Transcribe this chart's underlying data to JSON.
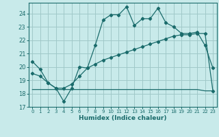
{
  "xlabel": "Humidex (Indice chaleur)",
  "bg_color": "#c8eaea",
  "grid_color": "#a0c8c8",
  "line_color": "#1a6b6b",
  "xlim": [
    -0.5,
    23.5
  ],
  "ylim": [
    17,
    24.8
  ],
  "yticks": [
    17,
    18,
    19,
    20,
    21,
    22,
    23,
    24
  ],
  "xticks": [
    0,
    1,
    2,
    3,
    4,
    5,
    6,
    7,
    8,
    9,
    10,
    11,
    12,
    13,
    14,
    15,
    16,
    17,
    18,
    19,
    20,
    21,
    22,
    23
  ],
  "line1_x": [
    0,
    1,
    2,
    3,
    4,
    5,
    6,
    7,
    8,
    9,
    10,
    11,
    12,
    13,
    14,
    15,
    16,
    17,
    18,
    19,
    20,
    21,
    22,
    23
  ],
  "line1_y": [
    20.4,
    19.8,
    18.8,
    18.4,
    17.4,
    18.4,
    20.0,
    19.9,
    21.6,
    23.5,
    23.9,
    23.9,
    24.5,
    23.1,
    23.6,
    23.6,
    24.4,
    23.3,
    23.0,
    22.5,
    22.5,
    22.6,
    21.6,
    19.9
  ],
  "line2_x": [
    0,
    1,
    2,
    3,
    4,
    5,
    6,
    7,
    8,
    9,
    10,
    11,
    12,
    13,
    14,
    15,
    16,
    17,
    18,
    19,
    20,
    21,
    22,
    23
  ],
  "line2_y": [
    18.3,
    18.3,
    18.3,
    18.3,
    18.3,
    18.3,
    18.3,
    18.3,
    18.3,
    18.3,
    18.3,
    18.3,
    18.3,
    18.3,
    18.3,
    18.3,
    18.3,
    18.3,
    18.3,
    18.3,
    18.3,
    18.3,
    18.2,
    18.2
  ],
  "line3_x": [
    0,
    1,
    2,
    3,
    4,
    5,
    6,
    7,
    8,
    9,
    10,
    11,
    12,
    13,
    14,
    15,
    16,
    17,
    18,
    19,
    20,
    21,
    22,
    23
  ],
  "line3_y": [
    19.5,
    19.3,
    18.8,
    18.4,
    18.4,
    18.7,
    19.3,
    19.9,
    20.2,
    20.5,
    20.7,
    20.9,
    21.1,
    21.3,
    21.5,
    21.7,
    21.9,
    22.1,
    22.3,
    22.4,
    22.4,
    22.5,
    22.5,
    18.2
  ]
}
